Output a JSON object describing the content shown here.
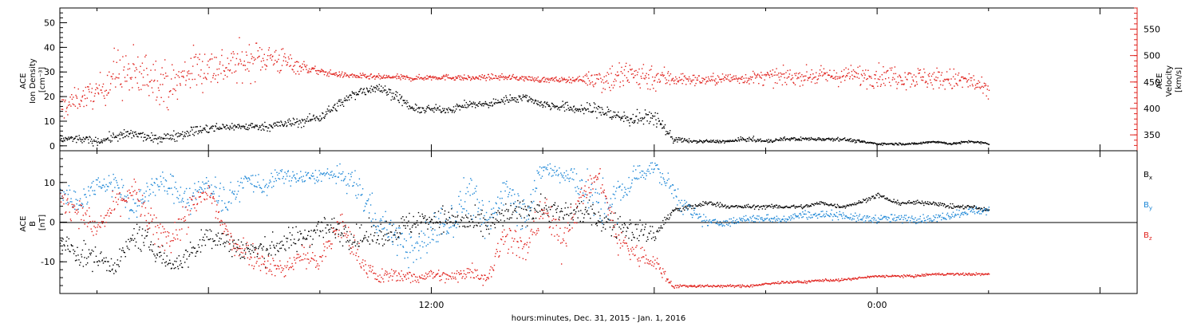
{
  "colors": {
    "black": "#000000",
    "red": "#e0201b",
    "blue": "#1b86d6"
  },
  "xlabel": "hours:minutes, Dec. 31, 2015 - Jan.  1, 2016",
  "chart_data": [
    {
      "panel": "top",
      "type": "scatter",
      "left_axis": {
        "title_lines": [
          "ACE",
          "Ion Density",
          "[cm⁻³]"
        ],
        "ylim": [
          -2,
          56
        ],
        "ticks": [
          0,
          10,
          20,
          30,
          40,
          50
        ]
      },
      "right_axis": {
        "title_lines": [
          "ACE",
          "Velocity",
          "[km/s]"
        ],
        "ylim": [
          320,
          590
        ],
        "ticks": [
          350,
          400,
          450,
          500,
          550
        ],
        "color": "#e0201b"
      },
      "x_hours_range": [
        2.0,
        31.0
      ],
      "x_tick_labels": [
        {
          "hour": 12,
          "label": "12:00"
        },
        {
          "hour": 24,
          "label": "0:00"
        }
      ],
      "series": [
        {
          "axis": "left",
          "x": [
            2.0,
            2.5,
            3.0,
            3.5,
            4.0,
            4.5,
            5.0,
            5.5,
            6.0,
            6.5,
            7.0,
            7.5,
            8.0,
            8.5,
            9.0,
            9.5,
            10.0,
            10.5,
            11.0,
            11.5,
            12.0,
            12.5,
            13.0,
            13.5,
            14.0,
            14.5,
            15.0,
            15.5,
            16.0,
            16.5,
            17.0,
            17.5,
            18.0,
            18.5,
            19.0,
            19.5,
            20.0,
            20.5,
            21.0,
            21.5,
            22.0,
            22.5,
            23.0,
            23.5,
            24.0,
            24.5,
            25.0,
            25.5,
            26.0,
            26.5,
            27.0
          ],
          "values": [
            3,
            3,
            2,
            4,
            5,
            3,
            4,
            6,
            7,
            8,
            8,
            8,
            9,
            10,
            12,
            17,
            22,
            24,
            21,
            15,
            15,
            15,
            17,
            17,
            19,
            20,
            17,
            16,
            15,
            15,
            12,
            11,
            12,
            3,
            2,
            2,
            2,
            3,
            2,
            3,
            3,
            3,
            3,
            2,
            1,
            1,
            1,
            2,
            1,
            2,
            1
          ],
          "spread": [
            1.5,
            1.5,
            1.5,
            2,
            2,
            1.5,
            2,
            2,
            2,
            1.5,
            1.5,
            1.5,
            2,
            2,
            2,
            2,
            2,
            2,
            2,
            1.5,
            1.5,
            1.5,
            1.5,
            1.5,
            1.5,
            1.5,
            1.5,
            2,
            2,
            3,
            3,
            3,
            3,
            1.5,
            0.6,
            0.6,
            0.6,
            1,
            0.7,
            0.7,
            0.7,
            0.7,
            0.7,
            0.6,
            0.4,
            0.4,
            0.4,
            0.5,
            0.4,
            0.5,
            0.4
          ]
        },
        {
          "axis": "right",
          "x": [
            2.0,
            2.5,
            3.0,
            3.5,
            4.0,
            4.5,
            5.0,
            5.5,
            6.0,
            6.5,
            7.0,
            7.5,
            8.0,
            8.5,
            9.0,
            9.5,
            10.0,
            10.5,
            11.0,
            11.5,
            12.0,
            12.5,
            13.0,
            13.5,
            14.0,
            14.5,
            15.0,
            15.5,
            16.0,
            16.5,
            17.0,
            17.5,
            18.0,
            18.5,
            19.0,
            19.5,
            20.0,
            20.5,
            21.0,
            21.5,
            22.0,
            22.5,
            23.0,
            23.5,
            24.0,
            24.5,
            25.0,
            25.5,
            26.0,
            26.5,
            27.0
          ],
          "values": [
            400,
            420,
            430,
            470,
            460,
            465,
            440,
            475,
            480,
            480,
            490,
            500,
            490,
            480,
            470,
            465,
            462,
            460,
            460,
            458,
            460,
            460,
            458,
            460,
            460,
            458,
            455,
            455,
            456,
            458,
            460,
            465,
            460,
            458,
            455,
            455,
            458,
            458,
            460,
            460,
            462,
            462,
            462,
            464,
            462,
            462,
            460,
            458,
            455,
            452,
            430
          ],
          "spread": [
            25,
            20,
            25,
            45,
            50,
            40,
            40,
            40,
            40,
            35,
            35,
            30,
            25,
            12,
            6,
            5,
            5,
            5,
            5,
            5,
            5,
            5,
            5,
            5,
            5,
            5,
            5,
            5,
            5,
            25,
            30,
            30,
            25,
            15,
            10,
            10,
            10,
            10,
            15,
            15,
            15,
            15,
            15,
            20,
            20,
            20,
            20,
            20,
            20,
            20,
            15
          ]
        }
      ]
    },
    {
      "panel": "bottom",
      "type": "scatter",
      "left_axis": {
        "title_lines": [
          "ACE",
          "B",
          "[nT]"
        ],
        "ylim": [
          -18,
          18
        ],
        "ticks": [
          -10,
          0,
          10
        ]
      },
      "x_hours_range": [
        2.0,
        31.0
      ],
      "x_tick_labels": [
        {
          "hour": 12,
          "label": "12:00"
        },
        {
          "hour": 24,
          "label": "0:00"
        }
      ],
      "zero_line": 0,
      "legend": [
        {
          "name": "B",
          "sub": "x",
          "color": "#000000"
        },
        {
          "name": "B",
          "sub": "y",
          "color": "#1b86d6"
        },
        {
          "name": "B",
          "sub": "z",
          "color": "#e0201b"
        }
      ],
      "series": [
        {
          "name": "Bx",
          "x": [
            2.0,
            2.5,
            3.0,
            3.5,
            4.0,
            4.5,
            5.0,
            5.5,
            6.0,
            6.5,
            7.0,
            7.5,
            8.0,
            8.5,
            9.0,
            9.5,
            10.0,
            10.5,
            11.0,
            11.5,
            12.0,
            12.5,
            13.0,
            13.5,
            14.0,
            14.5,
            15.0,
            15.5,
            16.0,
            16.5,
            17.0,
            17.5,
            18.0,
            18.5,
            19.0,
            19.5,
            20.0,
            20.5,
            21.0,
            21.5,
            22.0,
            22.5,
            23.0,
            23.5,
            24.0,
            24.5,
            25.0,
            25.5,
            26.0,
            26.5,
            27.0
          ],
          "values": [
            -5,
            -8,
            -9,
            -11,
            -3,
            -6,
            -11,
            -8,
            -3,
            -5,
            -7,
            -7,
            -5,
            -4,
            -1,
            -2,
            -4,
            -3,
            -2,
            0,
            1,
            1,
            0,
            -1,
            2,
            3,
            4,
            2,
            3,
            1,
            -1,
            -2,
            -3,
            3,
            4,
            5,
            4,
            4,
            4,
            4,
            4,
            5,
            4,
            5,
            7,
            5,
            5,
            5,
            4,
            4,
            3
          ],
          "spread": [
            3,
            3,
            3,
            2,
            3,
            3,
            2,
            3,
            3,
            3,
            3,
            3,
            3,
            3,
            3,
            3,
            3,
            3,
            3,
            3,
            3,
            3,
            3,
            3,
            3,
            3,
            3,
            3,
            3,
            3,
            3,
            3,
            2,
            1,
            0.7,
            0.6,
            0.5,
            0.5,
            0.5,
            0.5,
            0.5,
            0.5,
            0.5,
            0.5,
            0.6,
            0.5,
            0.5,
            0.5,
            0.5,
            0.5,
            0.5
          ]
        },
        {
          "name": "By",
          "x": [
            2.0,
            2.5,
            3.0,
            3.5,
            4.0,
            4.5,
            5.0,
            5.5,
            6.0,
            6.5,
            7.0,
            7.5,
            8.0,
            8.5,
            9.0,
            9.5,
            10.0,
            10.5,
            11.0,
            11.5,
            12.0,
            12.5,
            13.0,
            13.5,
            14.0,
            14.5,
            15.0,
            15.5,
            16.0,
            16.5,
            17.0,
            17.5,
            18.0,
            18.5,
            19.0,
            19.5,
            20.0,
            20.5,
            21.0,
            21.5,
            22.0,
            22.5,
            23.0,
            23.5,
            24.0,
            24.5,
            25.0,
            25.5,
            26.0,
            26.5,
            27.0
          ],
          "values": [
            8,
            5,
            10,
            10,
            3,
            10,
            9,
            6,
            10,
            5,
            11,
            9,
            12,
            11,
            12,
            12,
            9,
            1,
            -3,
            -8,
            -2,
            0,
            8,
            -1,
            10,
            2,
            14,
            12,
            10,
            4,
            6,
            12,
            14,
            8,
            2,
            0,
            0,
            1,
            1,
            1,
            2,
            2,
            2,
            1,
            1,
            1,
            1,
            1,
            2,
            3,
            3
          ],
          "spread": [
            3,
            3,
            2,
            3,
            4,
            3,
            3,
            4,
            3,
            4,
            2,
            3,
            2,
            2,
            1.5,
            2,
            4,
            4,
            4,
            4,
            5,
            5,
            5,
            5,
            4,
            5,
            2,
            3,
            4,
            6,
            5,
            3,
            1.5,
            3,
            2,
            1,
            1,
            1,
            1,
            1,
            1,
            1,
            1,
            1,
            1,
            1,
            1,
            1,
            1,
            1,
            1
          ]
        },
        {
          "name": "Bz",
          "x": [
            2.0,
            2.5,
            3.0,
            3.5,
            4.0,
            4.5,
            5.0,
            5.5,
            6.0,
            6.5,
            7.0,
            7.5,
            8.0,
            8.5,
            9.0,
            9.5,
            10.0,
            10.5,
            11.0,
            11.5,
            12.0,
            12.5,
            13.0,
            13.5,
            14.0,
            14.5,
            15.0,
            15.5,
            16.0,
            16.5,
            17.0,
            17.5,
            18.0,
            18.5,
            19.0,
            19.5,
            20.0,
            20.5,
            21.0,
            21.5,
            22.0,
            22.5,
            23.0,
            23.5,
            24.0,
            24.5,
            25.0,
            25.5,
            26.0,
            26.5,
            27.0
          ],
          "values": [
            6,
            3,
            -2,
            5,
            8,
            -2,
            -4,
            3,
            8,
            -4,
            -7,
            -10,
            -12,
            -8,
            -10,
            0,
            -8,
            -14,
            -13,
            -14,
            -13,
            -14,
            -12,
            -14,
            -2,
            -8,
            4,
            -5,
            6,
            12,
            -4,
            -8,
            -10,
            -16,
            -16,
            -16,
            -16,
            -16,
            -15.5,
            -15,
            -15,
            -14.5,
            -14.5,
            -14,
            -13.5,
            -13.5,
            -13.5,
            -13,
            -13,
            -13,
            -13
          ],
          "spread": [
            3,
            3,
            3,
            3,
            3,
            4,
            4,
            4,
            3,
            4,
            3,
            3,
            2,
            3,
            3,
            4,
            3,
            2,
            1.5,
            1.5,
            1.5,
            1.5,
            2,
            2,
            4,
            4,
            4,
            4,
            3,
            2,
            4,
            3,
            2,
            0.6,
            0.3,
            0.3,
            0.3,
            0.3,
            0.3,
            0.3,
            0.3,
            0.3,
            0.3,
            0.3,
            0.3,
            0.3,
            0.3,
            0.3,
            0.3,
            0.3,
            0.3
          ]
        }
      ]
    }
  ]
}
